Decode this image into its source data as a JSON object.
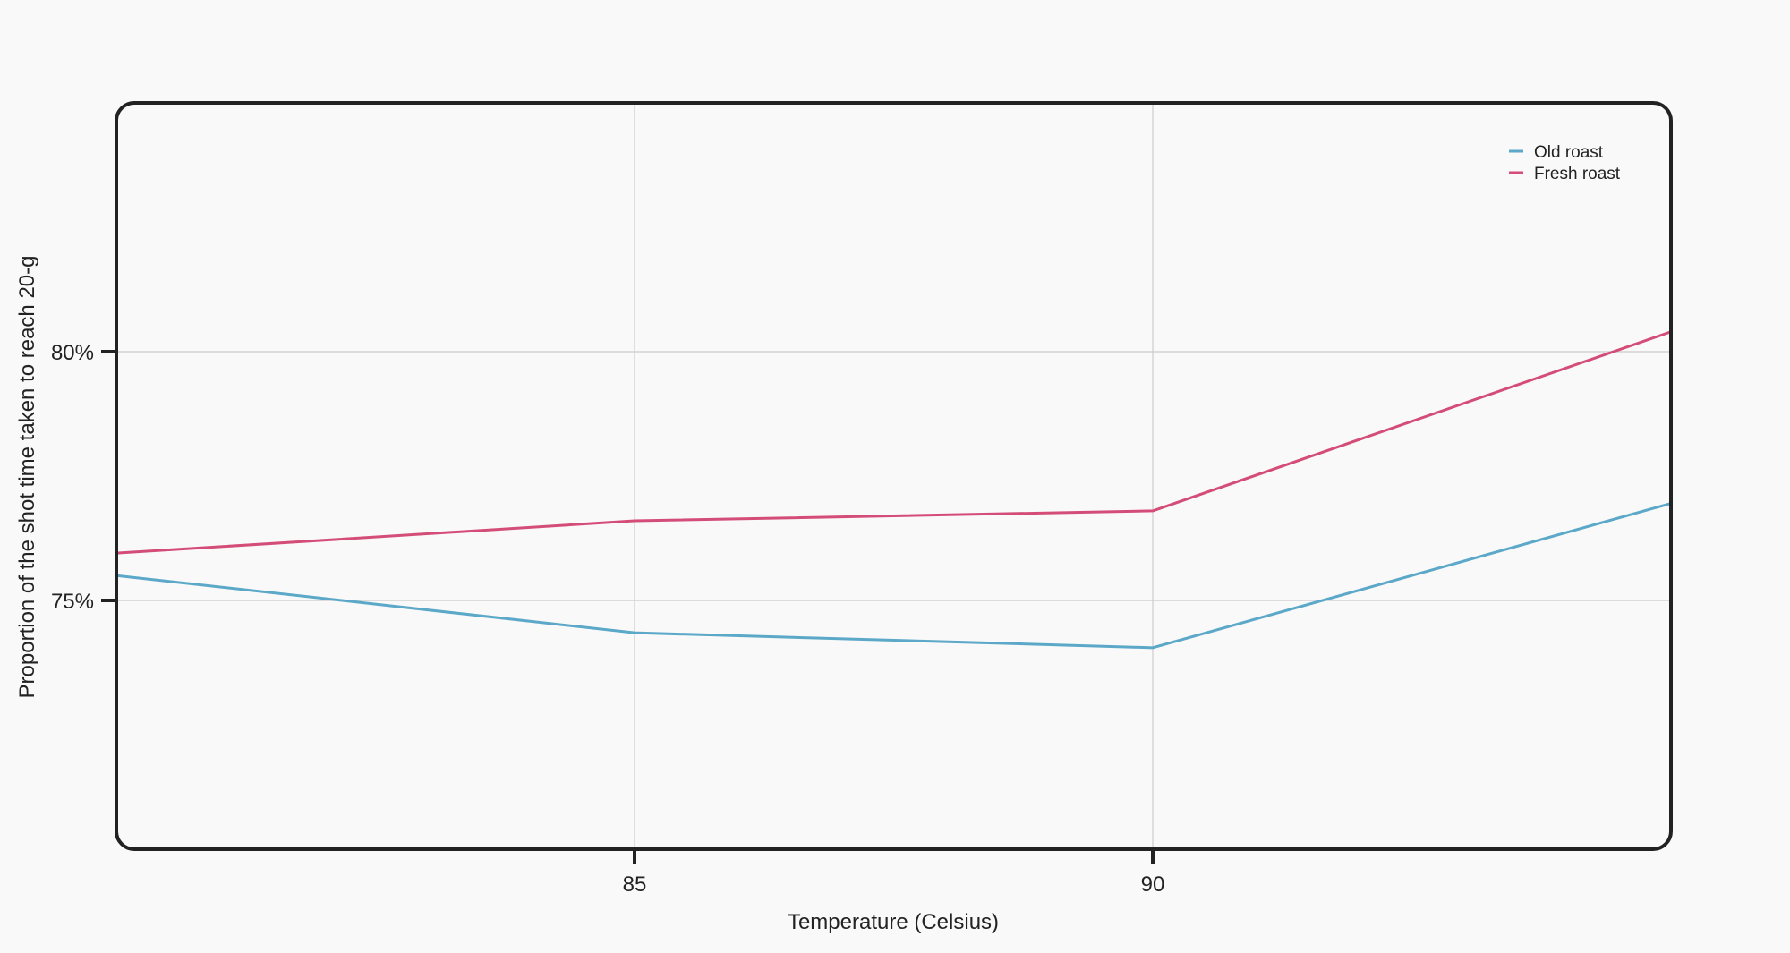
{
  "chart_data": {
    "type": "line",
    "title": "",
    "xlabel": "Temperature (Celsius)",
    "ylabel": "Proportion of the shot time taken to reach 20-g",
    "x": [
      80,
      85,
      90,
      95
    ],
    "xticks": [
      85,
      90
    ],
    "xtick_labels": [
      "85",
      "90"
    ],
    "xlim": [
      80,
      95
    ],
    "yticks": [
      75,
      80
    ],
    "ytick_labels": [
      "75%",
      "80%"
    ],
    "ylim": [
      70,
      85
    ],
    "grid": true,
    "legend_position": "top-right",
    "series": [
      {
        "name": "Old roast",
        "color": "#5ba8c8",
        "values": [
          75.5,
          74.35,
          74.05,
          76.95
        ]
      },
      {
        "name": "Fresh roast",
        "color": "#d44c78",
        "values": [
          75.95,
          76.6,
          76.8,
          80.4
        ]
      }
    ]
  }
}
